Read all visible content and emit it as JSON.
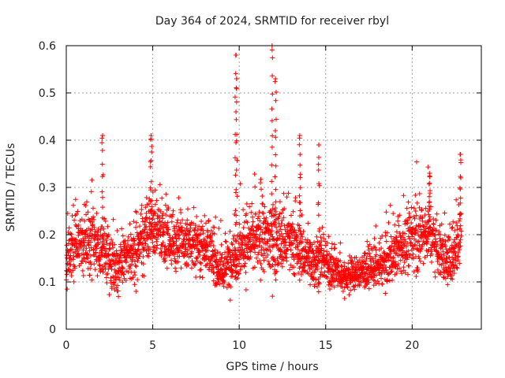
{
  "chart_data": {
    "type": "scatter",
    "title": "Day 364 of 2024, SRMTID for receiver rbyl",
    "xlabel": "GPS time / hours",
    "ylabel": "SRMTID / TECUs",
    "xlim": [
      0,
      24
    ],
    "ylim": [
      0,
      0.6
    ],
    "x_ticks": [
      0,
      5,
      10,
      15,
      20
    ],
    "x_tick_labels": [
      "0",
      "5",
      "10",
      "15",
      "20"
    ],
    "y_ticks": [
      0,
      0.1,
      0.2,
      0.3,
      0.4,
      0.5,
      0.6
    ],
    "y_tick_labels": [
      "0",
      "0.1",
      "0.2",
      "0.3",
      "0.4",
      "0.5",
      "0.6"
    ],
    "grid": true,
    "marker": "+",
    "color": "#ff0000",
    "profile": {
      "note": "approximate envelope of the dense point cloud, per-hour typical value and spread",
      "x": [
        0,
        1,
        2,
        3,
        4,
        5,
        6,
        7,
        8,
        9,
        10,
        11,
        12,
        13,
        14,
        15,
        16,
        17,
        18,
        19,
        20,
        21,
        22,
        22.8
      ],
      "typical": [
        0.15,
        0.19,
        0.17,
        0.13,
        0.17,
        0.22,
        0.19,
        0.18,
        0.18,
        0.12,
        0.17,
        0.19,
        0.19,
        0.18,
        0.15,
        0.14,
        0.11,
        0.12,
        0.13,
        0.16,
        0.19,
        0.21,
        0.14,
        0.2
      ],
      "spread": [
        0.05,
        0.06,
        0.06,
        0.05,
        0.06,
        0.07,
        0.05,
        0.05,
        0.05,
        0.04,
        0.06,
        0.06,
        0.07,
        0.06,
        0.05,
        0.04,
        0.03,
        0.03,
        0.04,
        0.05,
        0.06,
        0.06,
        0.05,
        0.07
      ]
    },
    "peaks": [
      {
        "x": 2.1,
        "y": 0.41
      },
      {
        "x": 4.9,
        "y": 0.41
      },
      {
        "x": 9.8,
        "y": 0.58
      },
      {
        "x": 9.85,
        "y": 0.53
      },
      {
        "x": 11.9,
        "y": 0.6
      },
      {
        "x": 12.1,
        "y": 0.53
      },
      {
        "x": 13.5,
        "y": 0.41
      },
      {
        "x": 14.6,
        "y": 0.39
      },
      {
        "x": 21.0,
        "y": 0.33
      },
      {
        "x": 22.8,
        "y": 0.37
      }
    ]
  }
}
